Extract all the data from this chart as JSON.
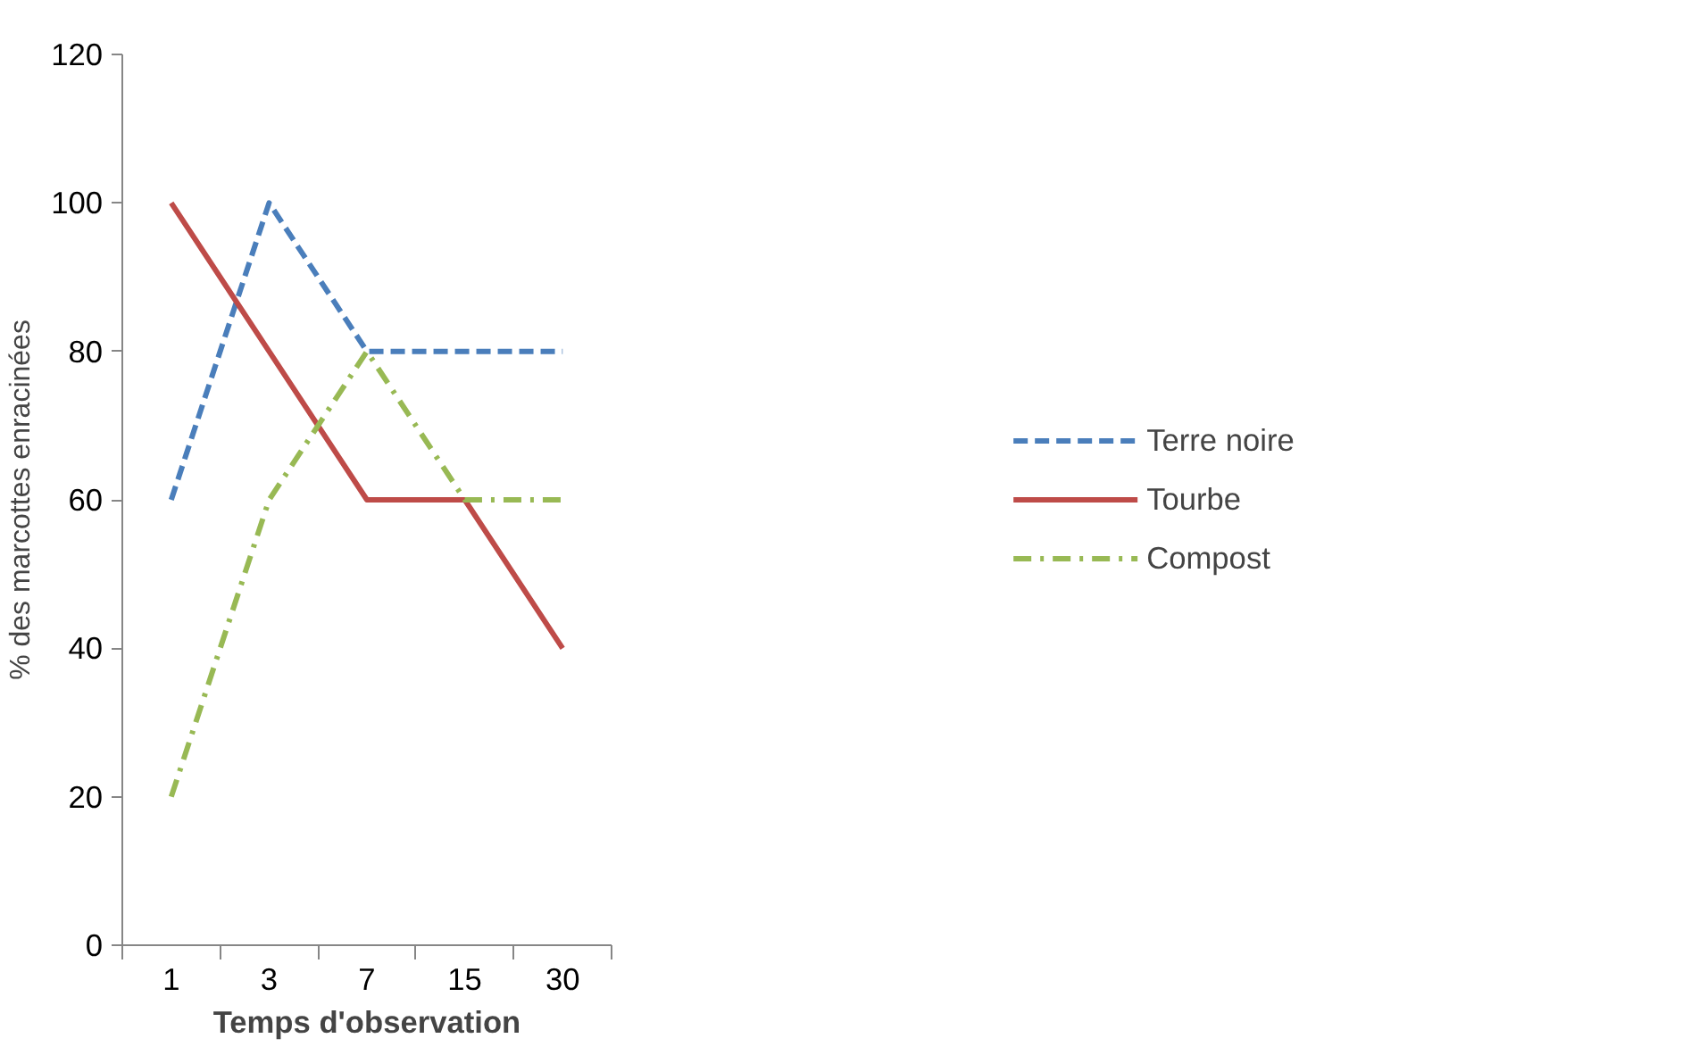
{
  "chart_data": {
    "type": "line",
    "xlabel": "Temps d'observation",
    "ylabel": "% des marcottes enracinées",
    "categories": [
      "1",
      "3",
      "7",
      "15",
      "30"
    ],
    "series": [
      {
        "name": "Terre noire",
        "color": "#4a7ebb",
        "values": [
          60,
          100,
          80,
          80,
          80
        ],
        "line_style": "dashed"
      },
      {
        "name": "Tourbe",
        "color": "#be4b48",
        "values": [
          100,
          80,
          60,
          60,
          40
        ],
        "line_style": "solid"
      },
      {
        "name": "Compost",
        "color": "#98b954",
        "values": [
          20,
          60,
          80,
          60,
          60
        ],
        "line_style": "dashdot"
      }
    ],
    "ylim": [
      0,
      120
    ],
    "yticks": [
      0,
      20,
      40,
      60,
      80,
      100,
      120
    ],
    "grid": false,
    "legend": "right",
    "marker": "none"
  }
}
